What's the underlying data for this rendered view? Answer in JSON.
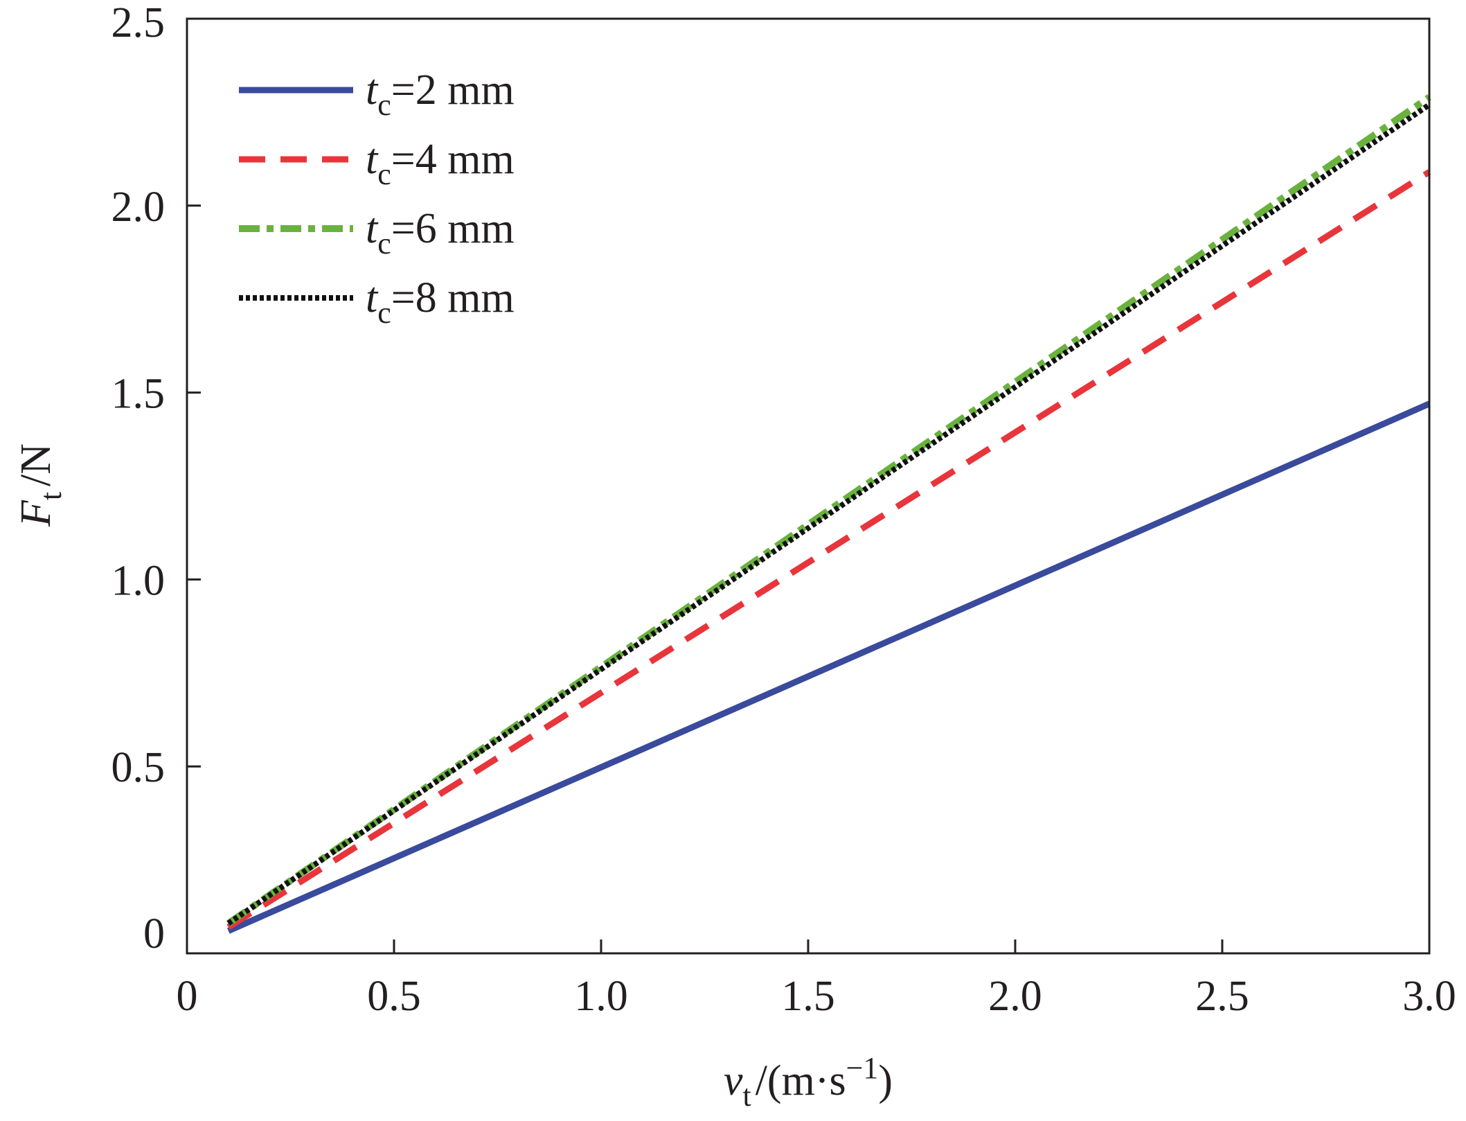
{
  "chart_data": {
    "type": "line",
    "title": "",
    "xlabel": {
      "var": "v",
      "sub": "t",
      "unit": "/(m·s",
      "sup": "−1",
      "close": ")"
    },
    "ylabel": {
      "var": "F",
      "sub": "t",
      "unit": "/N"
    },
    "xlim": [
      0,
      3.0
    ],
    "ylim": [
      0,
      2.5
    ],
    "xticks": [
      0,
      0.5,
      1.0,
      1.5,
      2.0,
      2.5,
      3.0
    ],
    "xtick_labels": [
      "0",
      "0.5",
      "1.0",
      "1.5",
      "2.0",
      "2.5",
      "3.0"
    ],
    "yticks": [
      0,
      0.5,
      1.0,
      1.5,
      2.0,
      2.5
    ],
    "ytick_labels": [
      "0",
      "0.5",
      "1.0",
      "1.5",
      "2.0",
      "2.5"
    ],
    "grid": false,
    "legend_position": "top-left",
    "series": [
      {
        "name": "tc=2 mm",
        "label": {
          "var": "t",
          "sub": "c",
          "rest": "=2 mm"
        },
        "color": "#3a4a9c",
        "style": "solid",
        "x": [
          0.1,
          3.0
        ],
        "y": [
          0.06,
          1.47
        ]
      },
      {
        "name": "tc=4 mm",
        "label": {
          "var": "t",
          "sub": "c",
          "rest": "=4 mm"
        },
        "color": "#e8353b",
        "style": "dashed",
        "x": [
          0.1,
          3.0
        ],
        "y": [
          0.07,
          2.09
        ]
      },
      {
        "name": "tc=6 mm",
        "label": {
          "var": "t",
          "sub": "c",
          "rest": "=6 mm"
        },
        "color": "#6ab23e",
        "style": "dashdot",
        "x": [
          0.1,
          3.0
        ],
        "y": [
          0.08,
          2.29
        ]
      },
      {
        "name": "tc=8 mm",
        "label": {
          "var": "t",
          "sub": "c",
          "rest": "=8 mm"
        },
        "color": "#111111",
        "style": "dotted",
        "x": [
          0.1,
          3.0
        ],
        "y": [
          0.08,
          2.27
        ]
      }
    ]
  }
}
